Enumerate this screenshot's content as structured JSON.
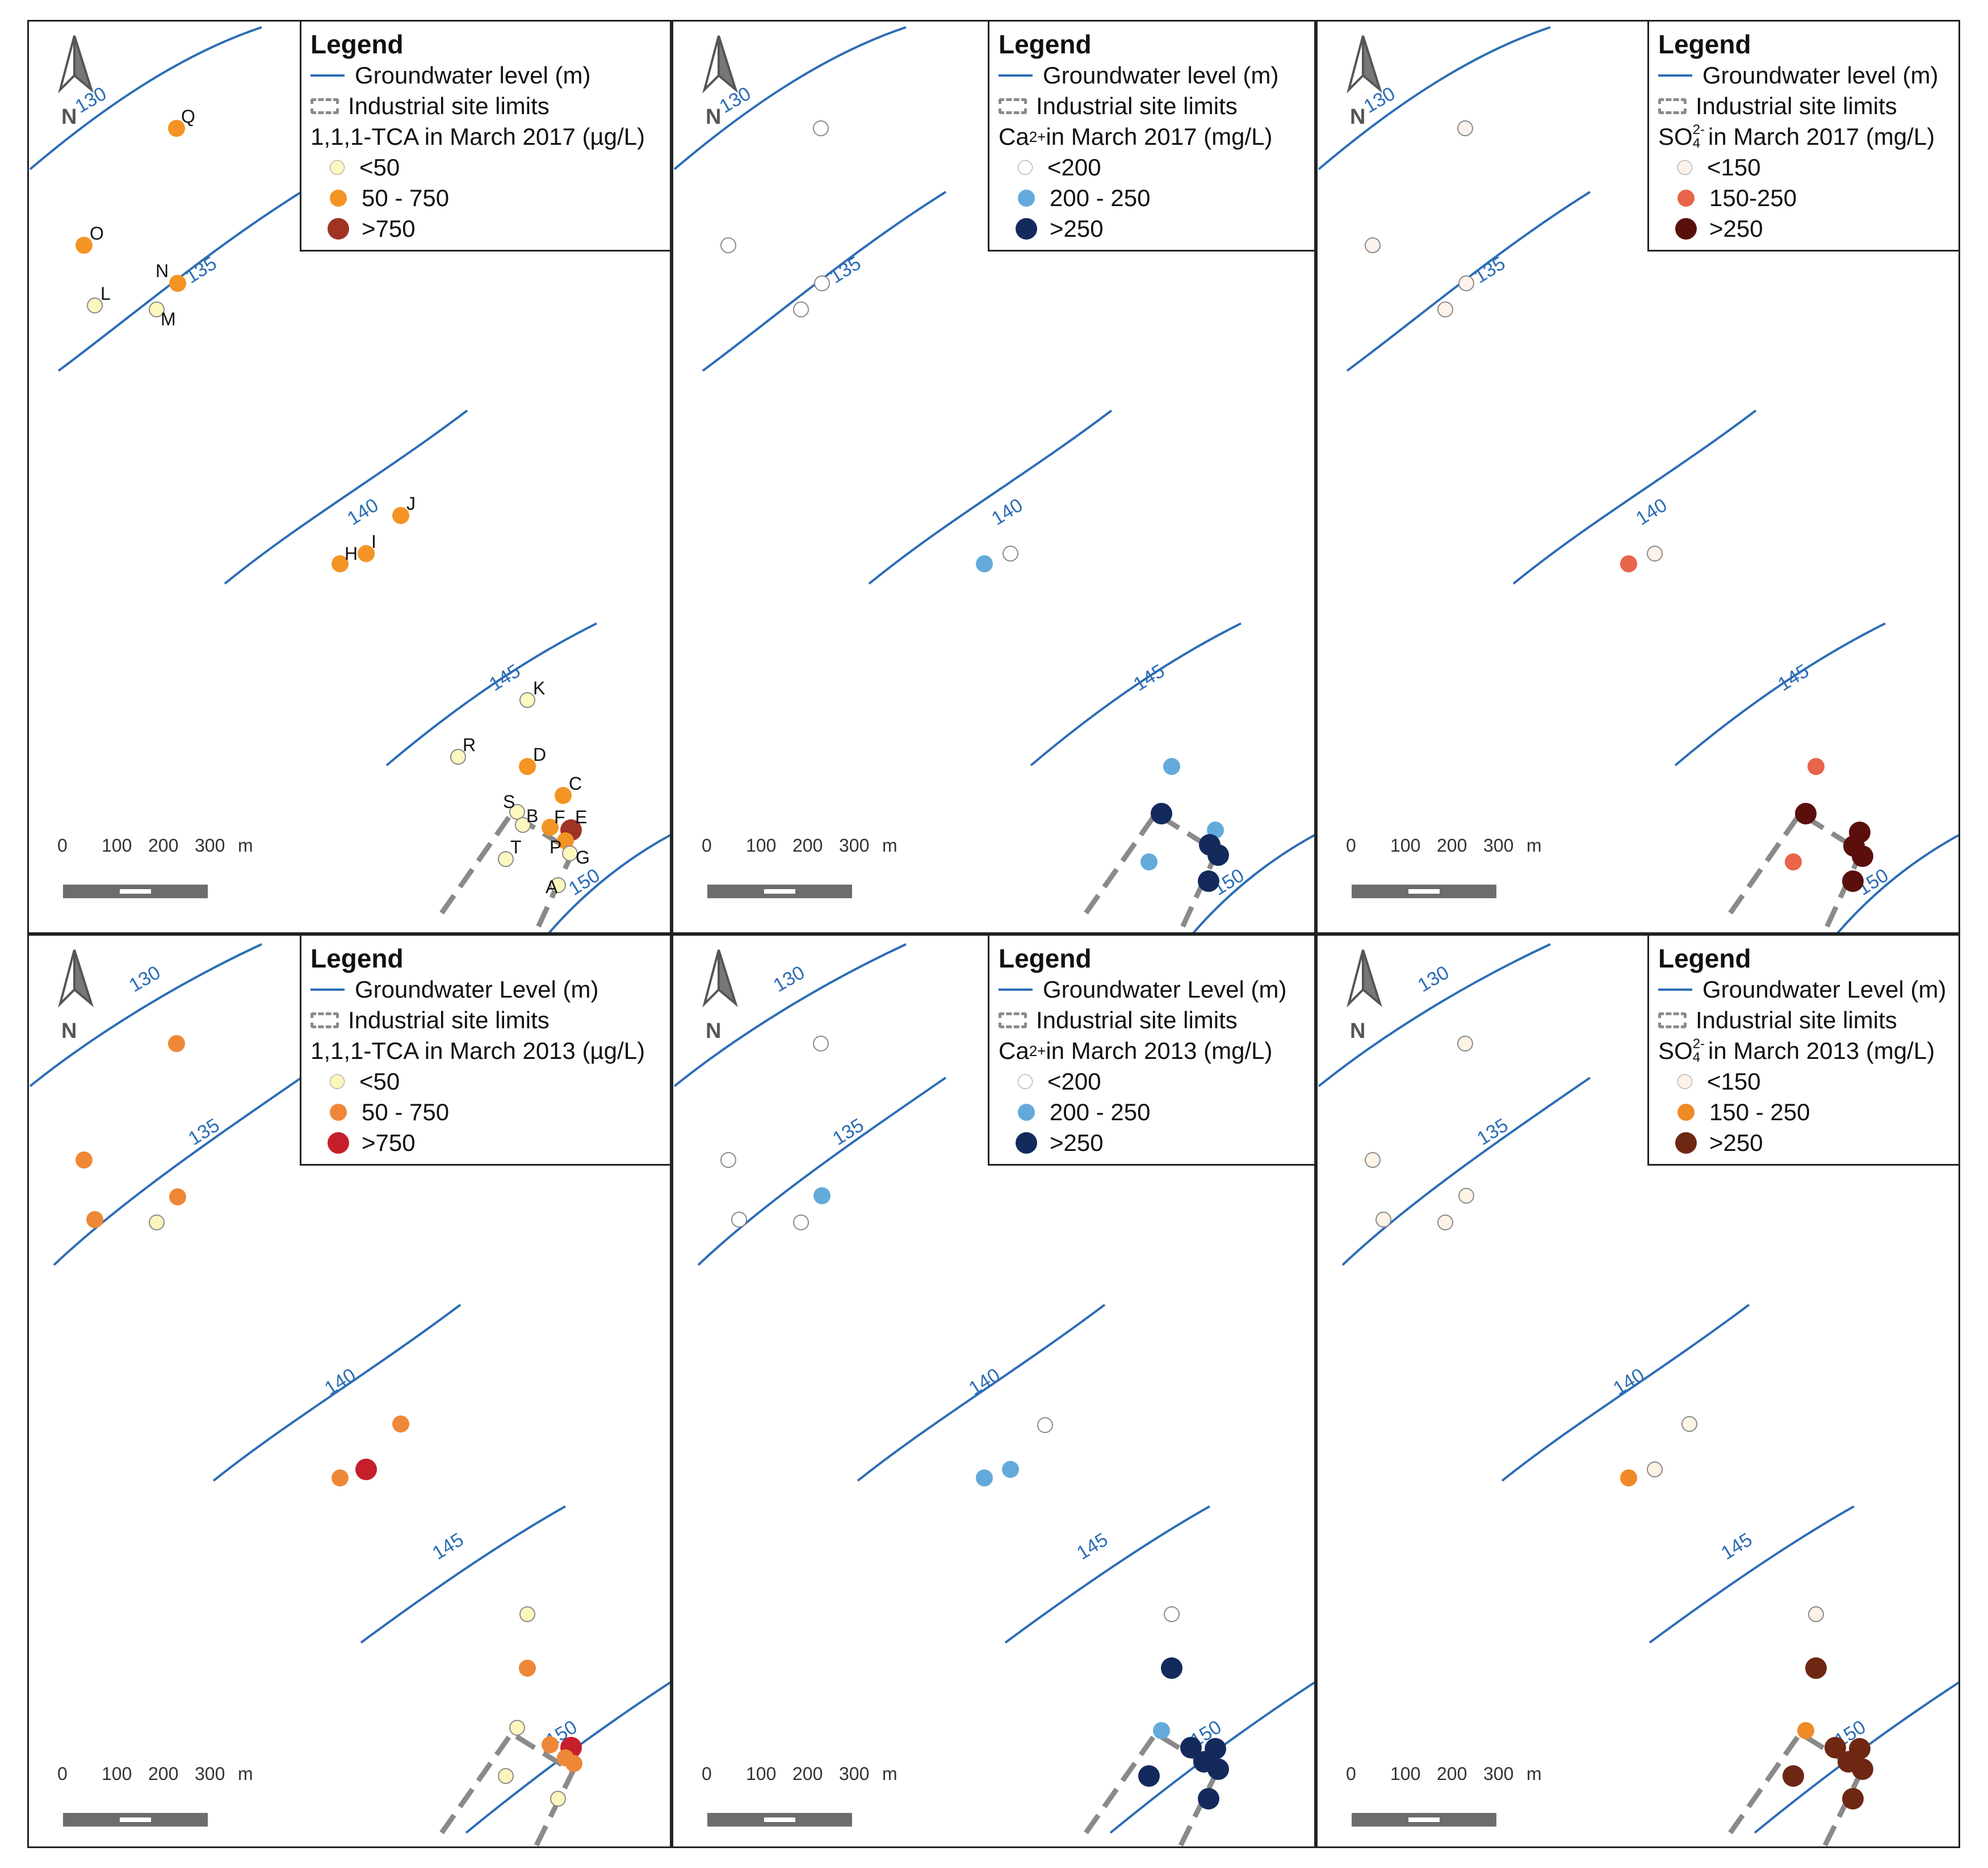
{
  "legend_common": {
    "title": "Legend",
    "gw_label_lower": "Groundwater level (m)",
    "gw_label_upper": "Groundwater Level (m)",
    "site_label": "Industrial site limits"
  },
  "north_label": "N",
  "scale": {
    "ticks": [
      "0",
      "100",
      "200",
      "300"
    ],
    "unit": "m"
  },
  "contours": [
    "130",
    "135",
    "140",
    "145",
    "150"
  ],
  "well_labels": [
    "Q",
    "O",
    "N",
    "L",
    "M",
    "J",
    "I",
    "H",
    "K",
    "R",
    "D",
    "C",
    "S",
    "B",
    "F",
    "E",
    "T",
    "P",
    "G",
    "A"
  ],
  "panels": [
    {
      "id": "tca-2017",
      "param_main": "1,1,1-TCA in March 2017 (µg/L)",
      "classes": [
        "<50",
        "50 - 750",
        ">750"
      ],
      "class_colors": [
        "#fdf7c0",
        "#f39424",
        "#9f3324"
      ]
    },
    {
      "id": "ca-2017",
      "param_pre": "Ca",
      "param_sup": "2+",
      "param_post": " in March 2017 (mg/L)",
      "classes": [
        "<200",
        "200 - 250",
        ">250"
      ],
      "class_colors": [
        "#ffffff",
        "#63aadb",
        "#142a5c"
      ]
    },
    {
      "id": "so4-2017",
      "param_pre": "SO",
      "param_sub": "4",
      "param_sup": "2-",
      "param_post": " in March 2017 (mg/L)",
      "classes": [
        "<150",
        "150-250",
        ">250"
      ],
      "class_colors": [
        "#fdf3ec",
        "#e8644a",
        "#5a0f0c"
      ]
    },
    {
      "id": "tca-2013",
      "param_main": "1,1,1-TCA in March 2013 (µg/L)",
      "classes": [
        "<50",
        "50 - 750",
        ">750"
      ],
      "class_colors": [
        "#fcf6bd",
        "#ee8838",
        "#c41f2a"
      ]
    },
    {
      "id": "ca-2013",
      "param_pre": "Ca",
      "param_sup": "2+",
      "param_post": " in March 2013 (mg/L)",
      "classes": [
        "<200",
        "200 - 250",
        ">250"
      ],
      "class_colors": [
        "#ffffff",
        "#63aadb",
        "#142a5c"
      ]
    },
    {
      "id": "so4-2013",
      "param_pre": "SO",
      "param_sub": "4",
      "param_sup": "2-",
      "param_post": " in March 2013 (mg/L)",
      "classes": [
        "<150",
        "150 - 250",
        ">250"
      ],
      "class_colors": [
        "#fdf3e6",
        "#f08a28",
        "#6e2712"
      ]
    }
  ],
  "colors": {
    "contour": "#2c6db5",
    "site": "#8a8a8a",
    "frame": "#222222",
    "scalebar": "#6d6d6d"
  }
}
